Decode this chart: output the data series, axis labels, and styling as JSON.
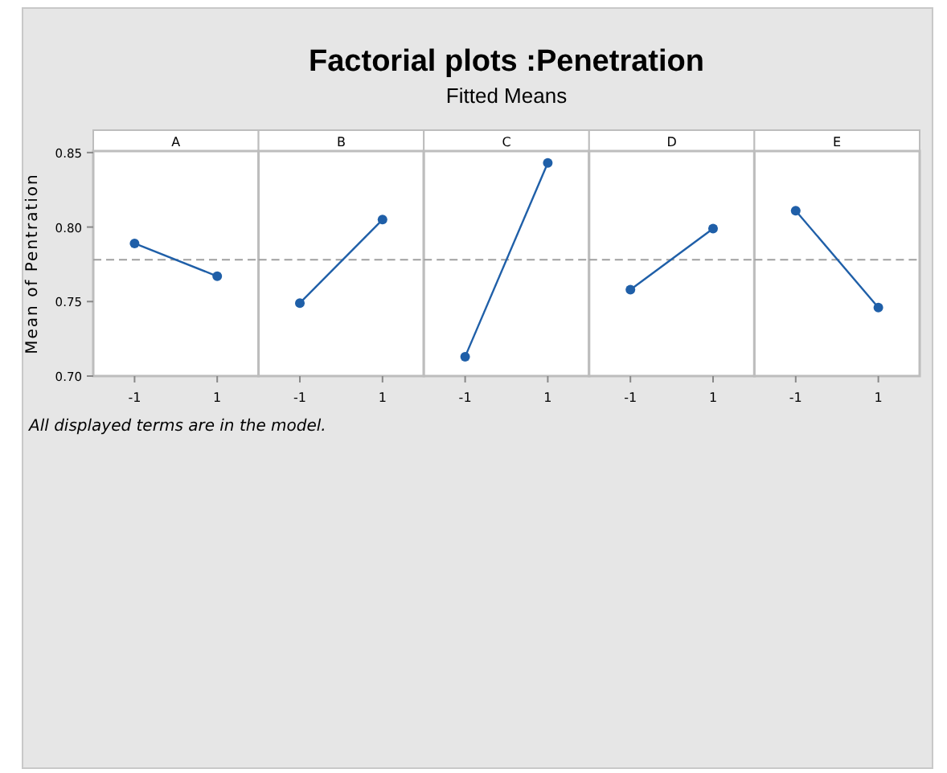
{
  "chart_data": [
    {
      "type": "line",
      "title": "A",
      "ylabel": "Mean of Pentration",
      "annotations": [
        "Factorial plots :Penetration",
        "Fitted Means",
        "All displayed terms are in the model."
      ],
      "categories": [
        "-1",
        "1"
      ],
      "values": [
        0.789,
        0.767
      ],
      "color": "#1f5fa8",
      "marker": "circle",
      "ylim": [
        0.7,
        0.851
      ],
      "yticks": [
        {
          "value": 0.7,
          "label": "0.70"
        },
        {
          "value": 0.75,
          "label": "0.75"
        },
        {
          "value": 0.8,
          "label": "0.80"
        },
        {
          "value": 0.85,
          "label": "0.85"
        }
      ],
      "ref_lines": [
        {
          "axis": "y",
          "value": 0.778,
          "color": "#a0a0a0",
          "line_style": "dashed"
        }
      ]
    },
    {
      "type": "line",
      "title": "B",
      "categories": [
        "-1",
        "1"
      ],
      "values": [
        0.749,
        0.805
      ],
      "color": "#1f5fa8",
      "marker": "circle",
      "ylim": [
        0.7,
        0.851
      ],
      "tick_labels": "x",
      "ref_lines": [
        {
          "axis": "y",
          "value": 0.778,
          "color": "#a0a0a0",
          "line_style": "dashed"
        }
      ]
    },
    {
      "type": "line",
      "title": "C",
      "categories": [
        "-1",
        "1"
      ],
      "values": [
        0.713,
        0.843
      ],
      "color": "#1f5fa8",
      "marker": "circle",
      "ylim": [
        0.7,
        0.851
      ],
      "tick_labels": "x",
      "ref_lines": [
        {
          "axis": "y",
          "value": 0.778,
          "color": "#a0a0a0",
          "line_style": "dashed"
        }
      ]
    },
    {
      "type": "line",
      "title": "D",
      "categories": [
        "-1",
        "1"
      ],
      "values": [
        0.758,
        0.799
      ],
      "color": "#1f5fa8",
      "marker": "circle",
      "ylim": [
        0.7,
        0.851
      ],
      "tick_labels": "x",
      "ref_lines": [
        {
          "axis": "y",
          "value": 0.778,
          "color": "#a0a0a0",
          "line_style": "dashed"
        }
      ]
    },
    {
      "type": "line",
      "title": "E",
      "categories": [
        "-1",
        "1"
      ],
      "values": [
        0.811,
        0.746
      ],
      "color": "#1f5fa8",
      "marker": "circle",
      "ylim": [
        0.7,
        0.851
      ],
      "tick_labels": "x",
      "ref_lines": [
        {
          "axis": "y",
          "value": 0.778,
          "color": "#a0a0a0",
          "line_style": "dashed"
        }
      ]
    }
  ]
}
